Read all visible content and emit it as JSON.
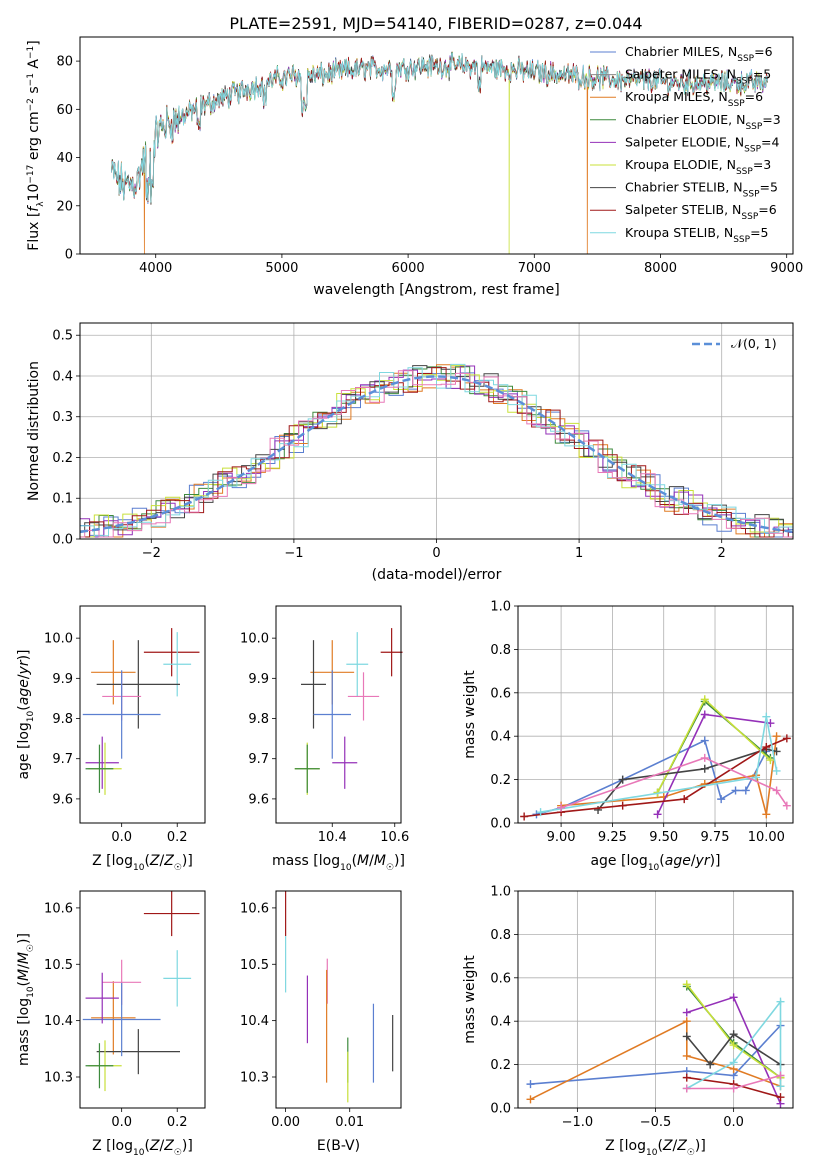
{
  "title": "PLATE=2591, MJD=54140, FIBERID=0287, z=0.044",
  "colors": {
    "Chabrier MILES": "#5b7fd0",
    "Salpeter MILES": "#8a8a8a",
    "Kroupa MILES": "#e07b24",
    "Chabrier ELODIE": "#3d8a3d",
    "Salpeter ELODIE": "#9430b8",
    "Kroupa ELODIE": "#c8e03a",
    "Chabrier STELIB": "#444444",
    "Salpeter STELIB": "#a01818",
    "Kroupa STELIB": "#7fd8e0",
    "pink": "#e878b8",
    "normal": "#5b8fd8"
  },
  "chart_data": [
    {
      "type": "line",
      "id": "spectrum",
      "xlabel": "wavelength [Angstrom, rest frame]",
      "ylabel": "Flux [f_λ10^-17 erg cm^-2 s^-1 A^-1]",
      "xlim": [
        3400,
        9050
      ],
      "ylim": [
        0,
        90
      ],
      "xticks": [
        "4000",
        "5000",
        "6000",
        "7000",
        "8000",
        "9000"
      ],
      "yticks": [
        "0",
        "20",
        "40",
        "60",
        "80"
      ],
      "grid": false,
      "legend_position": "top-right",
      "continuum": {
        "x": [
          3650,
          3750,
          3850,
          3950,
          4050,
          4150,
          4300,
          4500,
          4700,
          4900,
          5100,
          5300,
          5500,
          5700,
          5900,
          6100,
          6300,
          6500,
          6700,
          6900,
          7100,
          7300,
          7500,
          7700,
          7900,
          8100,
          8300,
          8500,
          8700,
          8850
        ],
        "y": [
          34,
          28,
          30,
          45,
          53,
          55,
          60,
          64,
          68,
          72,
          74,
          74,
          76,
          77,
          77,
          78,
          78,
          78,
          77,
          76,
          75,
          74,
          73,
          72,
          72,
          71,
          71,
          71,
          71,
          71
        ]
      },
      "series": [
        {
          "name": "Chabrier MILES",
          "nssp": "6"
        },
        {
          "name": "Salpeter MILES",
          "nssp": "5"
        },
        {
          "name": "Kroupa MILES",
          "nssp": "6"
        },
        {
          "name": "Chabrier ELODIE",
          "nssp": "3"
        },
        {
          "name": "Salpeter ELODIE",
          "nssp": "4"
        },
        {
          "name": "Kroupa ELODIE",
          "nssp": "3"
        },
        {
          "name": "Chabrier STELIB",
          "nssp": "5"
        },
        {
          "name": "Salpeter STELIB",
          "nssp": "6"
        },
        {
          "name": "Kroupa STELIB",
          "nssp": "5"
        }
      ],
      "cutoffs": [
        {
          "model": "Kroupa MILES",
          "x": 3910
        },
        {
          "model": "Kroupa ELODIE",
          "x": 6800
        },
        {
          "model": "Kroupa MILES",
          "x": 7420
        }
      ]
    },
    {
      "type": "histogram",
      "id": "residuals",
      "xlabel": "(data-model)/error",
      "ylabel": "Normed distribution",
      "xlim": [
        -2.5,
        2.5
      ],
      "ylim": [
        0,
        0.53
      ],
      "xticks": [
        "−2",
        "−1",
        "0",
        "1",
        "2"
      ],
      "yticks": [
        "0.0",
        "0.1",
        "0.2",
        "0.3",
        "0.4",
        "0.5"
      ],
      "grid": true,
      "bin_width": 0.1,
      "reference": {
        "label": "𝒩(0, 1)",
        "mean": 0,
        "sigma": 1
      },
      "amplitude_scale": 1.0
    },
    {
      "type": "errorbar",
      "id": "age-vs-Z",
      "xlabel": "Z [log10(Z/Z☉)]",
      "ylabel": "age [log10(age/yr)]",
      "xlim": [
        -0.15,
        0.3
      ],
      "ylim": [
        9.54,
        10.08
      ],
      "xticks": [
        "0.0",
        "0.2"
      ],
      "yticks": [
        "9.6",
        "9.7",
        "9.8",
        "9.9",
        "10.0"
      ],
      "points": [
        {
          "model": "Salpeter STELIB",
          "x": 0.18,
          "xerr": 0.1,
          "y": 9.965,
          "yerr": 0.06
        },
        {
          "model": "Kroupa STELIB",
          "x": 0.2,
          "xerr": 0.05,
          "y": 9.935,
          "yerr": 0.08
        },
        {
          "model": "Kroupa MILES",
          "x": -0.03,
          "xerr": 0.08,
          "y": 9.915,
          "yerr": 0.08
        },
        {
          "model": "Chabrier STELIB",
          "x": 0.06,
          "xerr": 0.15,
          "y": 9.885,
          "yerr": 0.11
        },
        {
          "model": "pink",
          "x": 0.0,
          "xerr": 0.07,
          "y": 9.855,
          "yerr": 0.06
        },
        {
          "model": "Chabrier MILES",
          "x": 0.0,
          "xerr": 0.14,
          "y": 9.81,
          "yerr": 0.11
        },
        {
          "model": "Salpeter ELODIE",
          "x": -0.07,
          "xerr": 0.06,
          "y": 9.69,
          "yerr": 0.065
        },
        {
          "model": "Kroupa ELODIE",
          "x": -0.06,
          "xerr": 0.06,
          "y": 9.675,
          "yerr": 0.065
        },
        {
          "model": "Chabrier ELODIE",
          "x": -0.08,
          "xerr": 0.05,
          "y": 9.675,
          "yerr": 0.06
        }
      ]
    },
    {
      "type": "errorbar",
      "id": "age-vs-mass",
      "xlabel": "mass [log10(M/M☉)]",
      "ylabel": "",
      "xlim": [
        10.22,
        10.62
      ],
      "ylim": [
        9.54,
        10.08
      ],
      "xticks": [
        "10.4",
        "10.6"
      ],
      "yticks": [
        "9.6",
        "9.7",
        "9.8",
        "9.9",
        "10.0"
      ],
      "points": [
        {
          "model": "Salpeter STELIB",
          "x": 10.59,
          "xerr": 0.035,
          "y": 9.965,
          "yerr": 0.06
        },
        {
          "model": "Kroupa STELIB",
          "x": 10.48,
          "xerr": 0.035,
          "y": 9.935,
          "yerr": 0.08
        },
        {
          "model": "Kroupa MILES",
          "x": 10.4,
          "xerr": 0.07,
          "y": 9.915,
          "yerr": 0.08
        },
        {
          "model": "Chabrier STELIB",
          "x": 10.34,
          "xerr": 0.04,
          "y": 9.885,
          "yerr": 0.11
        },
        {
          "model": "pink",
          "x": 10.5,
          "xerr": 0.05,
          "y": 9.855,
          "yerr": 0.06
        },
        {
          "model": "Chabrier MILES",
          "x": 10.4,
          "xerr": 0.06,
          "y": 9.81,
          "yerr": 0.11
        },
        {
          "model": "Salpeter ELODIE",
          "x": 10.44,
          "xerr": 0.04,
          "y": 9.69,
          "yerr": 0.065
        },
        {
          "model": "Kroupa ELODIE",
          "x": 10.32,
          "xerr": 0.04,
          "y": 9.675,
          "yerr": 0.065
        },
        {
          "model": "Chabrier ELODIE",
          "x": 10.32,
          "xerr": 0.04,
          "y": 9.675,
          "yerr": 0.06
        }
      ]
    },
    {
      "type": "line",
      "id": "massweight-vs-age",
      "xlabel": "age [log10(age/yr)]",
      "ylabel": "mass weight",
      "xlim": [
        8.79,
        10.13
      ],
      "ylim": [
        0.0,
        1.0
      ],
      "xticks": [
        "9.00",
        "9.25",
        "9.50",
        "9.75",
        "10.00"
      ],
      "yticks": [
        "0.0",
        "0.2",
        "0.4",
        "0.6",
        "0.8",
        "1.0"
      ],
      "grid": true,
      "series": [
        {
          "model": "Chabrier MILES",
          "x": [
            8.88,
            9.0,
            9.3,
            9.7,
            9.78,
            9.85,
            9.9,
            10.0
          ],
          "y": [
            0.04,
            0.07,
            0.2,
            0.38,
            0.11,
            0.15,
            0.15,
            0.33
          ]
        },
        {
          "model": "Kroupa MILES",
          "x": [
            9.0,
            9.5,
            9.7,
            9.95,
            10.0,
            10.05
          ],
          "y": [
            0.08,
            0.12,
            0.18,
            0.22,
            0.04,
            0.4
          ]
        },
        {
          "model": "Chabrier ELODIE",
          "x": [
            9.47,
            9.7,
            10.02
          ],
          "y": [
            0.14,
            0.56,
            0.3
          ]
        },
        {
          "model": "Salpeter ELODIE",
          "x": [
            9.47,
            9.7,
            10.02
          ],
          "y": [
            0.04,
            0.5,
            0.46
          ]
        },
        {
          "model": "Kroupa ELODIE",
          "x": [
            9.47,
            9.7,
            10.02
          ],
          "y": [
            0.14,
            0.57,
            0.29
          ]
        },
        {
          "model": "Chabrier STELIB",
          "x": [
            9.18,
            9.3,
            9.7,
            10.0,
            10.05
          ],
          "y": [
            0.06,
            0.2,
            0.25,
            0.34,
            0.33
          ]
        },
        {
          "model": "Salpeter STELIB",
          "x": [
            8.82,
            9.0,
            9.3,
            9.6,
            10.0,
            10.1
          ],
          "y": [
            0.03,
            0.05,
            0.08,
            0.11,
            0.35,
            0.39
          ]
        },
        {
          "model": "Kroupa STELIB",
          "x": [
            8.9,
            9.95,
            10.0,
            10.05
          ],
          "y": [
            0.05,
            0.21,
            0.49,
            0.24
          ]
        },
        {
          "model": "pink",
          "x": [
            9.0,
            9.7,
            10.05,
            10.1
          ],
          "y": [
            0.07,
            0.3,
            0.15,
            0.08
          ]
        }
      ]
    },
    {
      "type": "errorbar",
      "id": "mass-vs-Z",
      "xlabel": "Z [log10(Z/Z☉)]",
      "ylabel": "mass [log10(M/M☉)]",
      "xlim": [
        -0.15,
        0.3
      ],
      "ylim": [
        10.245,
        10.63
      ],
      "xticks": [
        "0.0",
        "0.2"
      ],
      "yticks": [
        "10.3",
        "10.4",
        "10.5",
        "10.6"
      ],
      "points": [
        {
          "model": "Salpeter STELIB",
          "x": 0.18,
          "xerr": 0.1,
          "y": 10.59,
          "yerr": 0.04
        },
        {
          "model": "Kroupa STELIB",
          "x": 0.2,
          "xerr": 0.05,
          "y": 10.475,
          "yerr": 0.05
        },
        {
          "model": "Kroupa MILES",
          "x": -0.03,
          "xerr": 0.08,
          "y": 10.405,
          "yerr": 0.065
        },
        {
          "model": "Chabrier STELIB",
          "x": 0.06,
          "xerr": 0.15,
          "y": 10.345,
          "yerr": 0.04
        },
        {
          "model": "pink",
          "x": 0.0,
          "xerr": 0.07,
          "y": 10.468,
          "yerr": 0.04
        },
        {
          "model": "Chabrier MILES",
          "x": 0.0,
          "xerr": 0.14,
          "y": 10.402,
          "yerr": 0.065
        },
        {
          "model": "Salpeter ELODIE",
          "x": -0.07,
          "xerr": 0.06,
          "y": 10.44,
          "yerr": 0.045
        },
        {
          "model": "Kroupa ELODIE",
          "x": -0.06,
          "xerr": 0.06,
          "y": 10.32,
          "yerr": 0.045
        },
        {
          "model": "Chabrier ELODIE",
          "x": -0.08,
          "xerr": 0.05,
          "y": 10.32,
          "yerr": 0.04
        }
      ]
    },
    {
      "type": "errorbar",
      "id": "mass-vs-ebv",
      "xlabel": "E(B-V)",
      "ylabel": "",
      "xlim": [
        -0.0015,
        0.018
      ],
      "ylim": [
        10.245,
        10.63
      ],
      "xticks": [
        "0.00",
        "0.01"
      ],
      "yticks": [
        "10.3",
        "10.4",
        "10.5",
        "10.6"
      ],
      "points": [
        {
          "model": "Salpeter STELIB",
          "x": 0.0,
          "xerr": 0,
          "y": 10.59,
          "yerr": 0.04
        },
        {
          "model": "Kroupa STELIB",
          "x": 0.0,
          "xerr": 0,
          "y": 10.5,
          "yerr": 0.05
        },
        {
          "model": "pink",
          "x": 0.0065,
          "xerr": 0,
          "y": 10.47,
          "yerr": 0.04
        },
        {
          "model": "Salpeter ELODIE",
          "x": 0.0034,
          "xerr": 0,
          "y": 10.42,
          "yerr": 0.06
        },
        {
          "model": "Kroupa MILES",
          "x": 0.0064,
          "xerr": 0,
          "y": 10.39,
          "yerr": 0.1
        },
        {
          "model": "Chabrier ELODIE",
          "x": 0.0097,
          "xerr": 0,
          "y": 10.33,
          "yerr": 0.04
        },
        {
          "model": "Kroupa ELODIE",
          "x": 0.0097,
          "xerr": 0,
          "y": 10.3,
          "yerr": 0.045
        },
        {
          "model": "Chabrier MILES",
          "x": 0.0137,
          "xerr": 0,
          "y": 10.36,
          "yerr": 0.07
        },
        {
          "model": "Chabrier STELIB",
          "x": 0.0167,
          "xerr": 0,
          "y": 10.36,
          "yerr": 0.05
        }
      ]
    },
    {
      "type": "line",
      "id": "massweight-vs-Z",
      "xlabel": "Z [log10(Z/Z☉)]",
      "ylabel": "mass weight",
      "xlim": [
        -1.38,
        0.38
      ],
      "ylim": [
        0.0,
        1.0
      ],
      "xticks": [
        "−1.0",
        "−0.5",
        "0.0"
      ],
      "yticks": [
        "0.0",
        "0.2",
        "0.4",
        "0.6",
        "0.8",
        "1.0"
      ],
      "grid": true,
      "series": [
        {
          "model": "Chabrier MILES",
          "x": [
            -1.3,
            -0.3,
            0.0,
            0.3
          ],
          "y": [
            0.11,
            0.17,
            0.15,
            0.38
          ]
        },
        {
          "model": "Kroupa MILES",
          "x": [
            -1.3,
            -0.3,
            -0.3,
            0.0,
            0.3
          ],
          "y": [
            0.04,
            0.4,
            0.24,
            0.18,
            0.1
          ]
        },
        {
          "model": "Chabrier ELODIE",
          "x": [
            -0.3,
            0.0,
            0.3
          ],
          "y": [
            0.56,
            0.3,
            0.14
          ]
        },
        {
          "model": "Salpeter ELODIE",
          "x": [
            -0.3,
            0.0,
            0.3
          ],
          "y": [
            0.44,
            0.51,
            0.02
          ]
        },
        {
          "model": "Kroupa ELODIE",
          "x": [
            -0.3,
            0.0,
            0.3
          ],
          "y": [
            0.57,
            0.29,
            0.14
          ]
        },
        {
          "model": "Chabrier STELIB",
          "x": [
            -0.3,
            -0.15,
            0.0,
            0.3
          ],
          "y": [
            0.33,
            0.2,
            0.34,
            0.2
          ]
        },
        {
          "model": "Salpeter STELIB",
          "x": [
            -0.3,
            0.0,
            0.3
          ],
          "y": [
            0.14,
            0.11,
            0.05
          ]
        },
        {
          "model": "Kroupa STELIB",
          "x": [
            -0.3,
            0.0,
            0.3,
            0.3
          ],
          "y": [
            0.09,
            0.21,
            0.49,
            0.1
          ]
        },
        {
          "model": "pink",
          "x": [
            -0.3,
            0.0,
            0.3
          ],
          "y": [
            0.09,
            0.09,
            0.15
          ]
        }
      ]
    }
  ],
  "labels": {
    "spec_ylabel": "Flux [fλ10−17 erg cm−2 s−1 A−1]",
    "spec_xlabel": "wavelength [Angstrom, rest frame]",
    "hist_ylabel": "Normed distribution",
    "hist_xlabel": "(data-model)/error",
    "age_label": "age  [log10(age/yr)]",
    "z_label": "Z [log10(Z/Z☉)]",
    "mass_label": "mass [log10(M/M☉)]",
    "ebv_label": "E(B-V)",
    "mw_label": "mass weight",
    "age_x_label": "age  [log10(age/yr)]",
    "mass_y_label": "mass [log10(M/M☉)]",
    "norm_label": "𝒩(0, 1)"
  }
}
